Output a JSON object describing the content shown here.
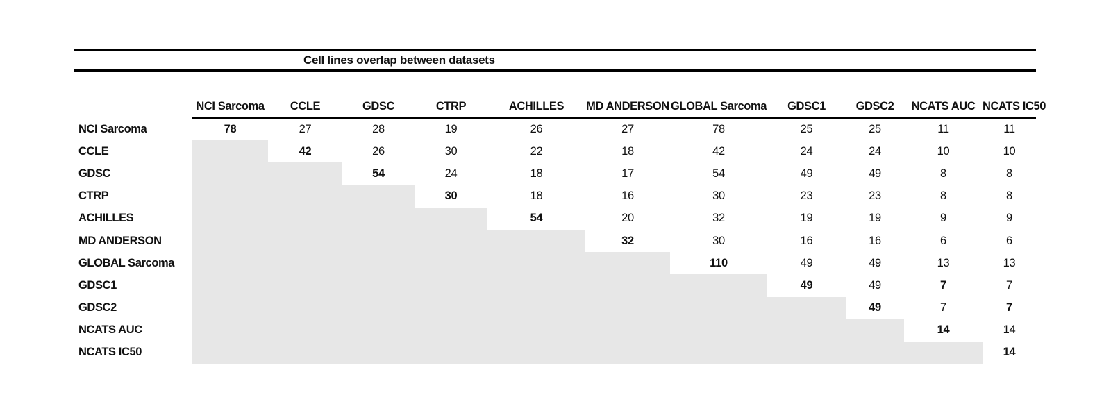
{
  "title": "Cell lines overlap between datasets",
  "chart_data": {
    "type": "table",
    "title": "Cell lines overlap between datasets",
    "columns": [
      "NCI Sarcoma",
      "CCLE",
      "GDSC",
      "CTRP",
      "ACHILLES",
      "MD ANDERSON",
      "GLOBAL Sarcoma",
      "GDSC1",
      "GDSC2",
      "NCATS AUC",
      "NCATS IC50"
    ],
    "row_labels": [
      "NCI Sarcoma",
      "CCLE",
      "GDSC",
      "CTRP",
      "ACHILLES",
      "MD ANDERSON",
      "GLOBAL Sarcoma",
      "GDSC1",
      "GDSC2",
      "NCATS AUC",
      "NCATS IC50"
    ],
    "matrix": [
      [
        78,
        27,
        28,
        19,
        26,
        27,
        78,
        25,
        25,
        11,
        11
      ],
      [
        null,
        42,
        26,
        30,
        22,
        18,
        42,
        24,
        24,
        10,
        10
      ],
      [
        null,
        null,
        54,
        24,
        18,
        17,
        54,
        49,
        49,
        8,
        8
      ],
      [
        null,
        null,
        null,
        30,
        18,
        16,
        30,
        23,
        23,
        8,
        8
      ],
      [
        null,
        null,
        null,
        null,
        54,
        20,
        32,
        19,
        19,
        9,
        9
      ],
      [
        null,
        null,
        null,
        null,
        null,
        32,
        30,
        16,
        16,
        6,
        6
      ],
      [
        null,
        null,
        null,
        null,
        null,
        null,
        110,
        49,
        49,
        13,
        13
      ],
      [
        null,
        null,
        null,
        null,
        null,
        null,
        null,
        49,
        49,
        7,
        7
      ],
      [
        null,
        null,
        null,
        null,
        null,
        null,
        null,
        null,
        49,
        7,
        7
      ],
      [
        null,
        null,
        null,
        null,
        null,
        null,
        null,
        null,
        null,
        14,
        14
      ],
      [
        null,
        null,
        null,
        null,
        null,
        null,
        null,
        null,
        null,
        null,
        14
      ]
    ],
    "bold_cells": [
      [
        0,
        0
      ],
      [
        1,
        1
      ],
      [
        2,
        2
      ],
      [
        3,
        3
      ],
      [
        4,
        4
      ],
      [
        5,
        5
      ],
      [
        6,
        6
      ],
      [
        7,
        7
      ],
      [
        7,
        9
      ],
      [
        8,
        8
      ],
      [
        8,
        10
      ],
      [
        9,
        9
      ],
      [
        10,
        10
      ]
    ],
    "shading_rule": "cells below the diagonal are shaded light gray and empty",
    "layout_hints": {
      "header_underline": true,
      "double_rule_around_title": true,
      "legend_position": "none",
      "grid": "off"
    }
  },
  "colors": {
    "shaded_cell": "#e7e7e7",
    "text": "#111111",
    "rule": "#000000",
    "background": "#ffffff"
  }
}
